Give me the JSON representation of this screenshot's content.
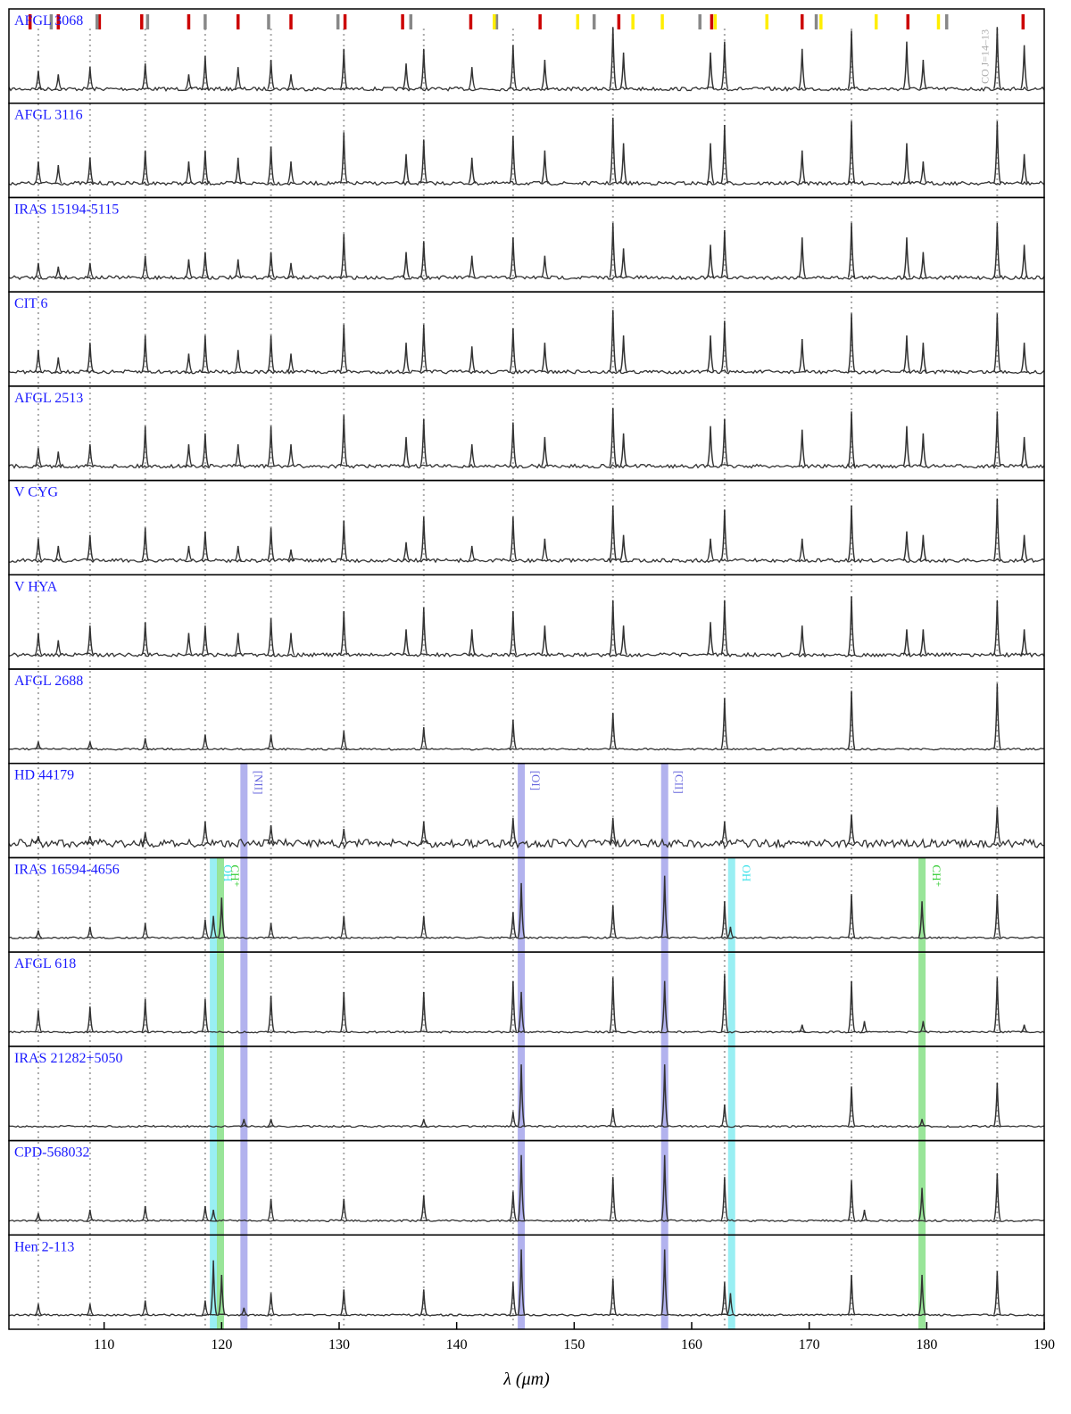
{
  "chart_data": {
    "type": "spectra",
    "xlabel": "λ (μm)",
    "xlim": [
      101.9,
      190
    ],
    "xticks": [
      110,
      120,
      130,
      140,
      150,
      160,
      170,
      180,
      190
    ],
    "ylim": [
      0,
      1
    ],
    "line_color": "#333333",
    "label_color": "#1a1aff",
    "co_lines": {
      "label": "CO J=14–13",
      "color": "#aaaaaa",
      "x": [
        104.4,
        108.8,
        113.5,
        118.6,
        124.2,
        130.4,
        137.2,
        144.8,
        153.3,
        162.8,
        173.6,
        186.0
      ]
    },
    "markers": [
      {
        "color": "#cc0000",
        "x": [
          103.7,
          106.1,
          109.6,
          113.2,
          117.2,
          121.4,
          125.9,
          130.5,
          135.4,
          141.2,
          147.1,
          153.8,
          161.7,
          169.4,
          178.4,
          188.2
        ]
      },
      {
        "color": "#888888",
        "x": [
          105.5,
          109.4,
          113.7,
          118.6,
          124.0,
          129.9,
          136.1,
          143.4,
          151.7,
          160.7,
          170.6,
          181.7
        ]
      },
      {
        "color": "#ffee00",
        "x": [
          143.2,
          150.3,
          155.0,
          157.5,
          162.0,
          166.4,
          171.0,
          175.7,
          181.0
        ]
      }
    ],
    "panels": [
      {
        "name": "AFGL 3068",
        "x": [
          104.4,
          106.1,
          108.8,
          113.5,
          117.2,
          118.6,
          121.4,
          124.2,
          125.9,
          130.4,
          135.7,
          137.2,
          141.3,
          144.8,
          147.5,
          153.3,
          154.2,
          161.6,
          162.8,
          169.4,
          173.6,
          178.3,
          179.7,
          186.0,
          188.3
        ],
        "values": [
          0.25,
          0.2,
          0.3,
          0.35,
          0.2,
          0.45,
          0.3,
          0.4,
          0.2,
          0.55,
          0.35,
          0.55,
          0.3,
          0.6,
          0.4,
          0.85,
          0.5,
          0.5,
          0.65,
          0.55,
          0.8,
          0.65,
          0.4,
          0.85,
          0.6
        ]
      },
      {
        "name": "AFGL 3116",
        "x": [
          104.4,
          106.1,
          108.8,
          113.5,
          117.2,
          118.6,
          121.4,
          124.2,
          125.9,
          130.4,
          135.7,
          137.2,
          141.3,
          144.8,
          147.5,
          153.3,
          154.2,
          161.6,
          162.8,
          169.4,
          173.6,
          178.3,
          179.7,
          186.0,
          188.3
        ],
        "values": [
          0.3,
          0.25,
          0.35,
          0.45,
          0.3,
          0.45,
          0.35,
          0.5,
          0.3,
          0.7,
          0.4,
          0.6,
          0.35,
          0.65,
          0.45,
          0.9,
          0.55,
          0.55,
          0.8,
          0.45,
          0.85,
          0.55,
          0.3,
          0.85,
          0.4
        ]
      },
      {
        "name": "IRAS 15194-5115",
        "x": [
          104.4,
          106.1,
          108.8,
          113.5,
          117.2,
          118.6,
          121.4,
          124.2,
          125.9,
          130.4,
          135.7,
          137.2,
          141.3,
          144.8,
          147.5,
          153.3,
          154.2,
          161.6,
          162.8,
          169.4,
          173.6,
          178.3,
          179.7,
          186.0,
          188.3
        ],
        "values": [
          0.2,
          0.15,
          0.2,
          0.3,
          0.25,
          0.35,
          0.25,
          0.35,
          0.2,
          0.6,
          0.35,
          0.5,
          0.3,
          0.55,
          0.3,
          0.75,
          0.4,
          0.45,
          0.65,
          0.55,
          0.75,
          0.55,
          0.35,
          0.75,
          0.45
        ]
      },
      {
        "name": "CIT 6",
        "x": [
          104.4,
          106.1,
          108.8,
          113.5,
          117.2,
          118.6,
          121.4,
          124.2,
          125.9,
          130.4,
          135.7,
          137.2,
          141.3,
          144.8,
          147.5,
          153.3,
          154.2,
          161.6,
          162.8,
          169.4,
          173.6,
          178.3,
          179.7,
          186.0,
          188.3
        ],
        "values": [
          0.3,
          0.2,
          0.4,
          0.5,
          0.25,
          0.5,
          0.3,
          0.5,
          0.25,
          0.65,
          0.4,
          0.65,
          0.35,
          0.6,
          0.4,
          0.85,
          0.5,
          0.5,
          0.7,
          0.45,
          0.8,
          0.5,
          0.4,
          0.8,
          0.4
        ]
      },
      {
        "name": "AFGL 2513",
        "x": [
          104.4,
          106.1,
          108.8,
          113.5,
          117.2,
          118.6,
          121.4,
          124.2,
          125.9,
          130.4,
          135.7,
          137.2,
          141.3,
          144.8,
          147.5,
          153.3,
          154.2,
          161.6,
          162.8,
          169.4,
          173.6,
          178.3,
          179.7,
          186.0,
          188.3
        ],
        "values": [
          0.25,
          0.2,
          0.3,
          0.55,
          0.3,
          0.45,
          0.3,
          0.55,
          0.3,
          0.7,
          0.4,
          0.65,
          0.3,
          0.6,
          0.4,
          0.8,
          0.45,
          0.55,
          0.65,
          0.5,
          0.75,
          0.55,
          0.45,
          0.75,
          0.4
        ]
      },
      {
        "name": "V CYG",
        "x": [
          104.4,
          106.1,
          108.8,
          113.5,
          117.2,
          118.6,
          121.4,
          124.2,
          125.9,
          130.4,
          135.7,
          137.2,
          141.3,
          144.8,
          147.5,
          153.3,
          154.2,
          161.6,
          162.8,
          169.4,
          173.6,
          178.3,
          179.7,
          186.0,
          188.3
        ],
        "values": [
          0.3,
          0.2,
          0.35,
          0.45,
          0.2,
          0.4,
          0.2,
          0.45,
          0.15,
          0.55,
          0.25,
          0.6,
          0.2,
          0.6,
          0.3,
          0.75,
          0.35,
          0.3,
          0.7,
          0.3,
          0.75,
          0.4,
          0.35,
          0.85,
          0.35
        ]
      },
      {
        "name": "V HYA",
        "x": [
          104.4,
          106.1,
          108.8,
          113.5,
          117.2,
          118.6,
          121.4,
          124.2,
          125.9,
          130.4,
          135.7,
          137.2,
          141.3,
          144.8,
          147.5,
          153.3,
          154.2,
          161.6,
          162.8,
          169.4,
          173.6,
          178.3,
          179.7,
          186.0,
          188.3
        ],
        "values": [
          0.3,
          0.2,
          0.4,
          0.45,
          0.3,
          0.4,
          0.3,
          0.5,
          0.3,
          0.6,
          0.35,
          0.65,
          0.35,
          0.6,
          0.4,
          0.75,
          0.4,
          0.45,
          0.75,
          0.4,
          0.8,
          0.35,
          0.35,
          0.75,
          0.35
        ]
      },
      {
        "name": "AFGL 2688",
        "x": [
          104.4,
          108.8,
          113.5,
          118.6,
          124.2,
          130.4,
          137.2,
          144.8,
          153.3,
          162.8,
          173.6,
          186.0
        ],
        "values": [
          0.1,
          0.1,
          0.15,
          0.2,
          0.2,
          0.25,
          0.3,
          0.4,
          0.5,
          0.7,
          0.8,
          0.9
        ]
      },
      {
        "name": "HD 44179",
        "x": [
          104.4,
          108.8,
          113.5,
          118.6,
          124.2,
          130.4,
          137.2,
          144.8,
          153.3,
          162.8,
          173.6,
          186.0
        ],
        "values": [
          0.1,
          0.1,
          0.15,
          0.3,
          0.25,
          0.2,
          0.3,
          0.35,
          0.35,
          0.3,
          0.4,
          0.5
        ],
        "bands": [
          {
            "label": "[NII]",
            "x": 121.9,
            "color": "#6666dd"
          },
          {
            "label": "[OI]",
            "x": 145.5,
            "color": "#6666dd"
          },
          {
            "label": "[CII]",
            "x": 157.7,
            "color": "#6666dd"
          }
        ]
      },
      {
        "name": "IRAS 16594-4656",
        "x": [
          104.4,
          108.8,
          113.5,
          118.6,
          119.3,
          120.0,
          124.2,
          130.4,
          137.2,
          144.8,
          145.5,
          153.3,
          157.7,
          162.8,
          163.3,
          173.6,
          179.6,
          186.0
        ],
        "values": [
          0.1,
          0.15,
          0.2,
          0.25,
          0.3,
          0.55,
          0.2,
          0.3,
          0.3,
          0.35,
          0.75,
          0.45,
          0.85,
          0.5,
          0.15,
          0.6,
          0.5,
          0.6
        ],
        "bands": [
          {
            "label": "OH",
            "x": 119.3,
            "color": "#33e0e8"
          },
          {
            "label": "CH⁺",
            "x": 119.9,
            "color": "#33cc33"
          },
          {
            "label": "OH",
            "x": 163.4,
            "color": "#33e0e8"
          },
          {
            "label": "CH⁺",
            "x": 179.6,
            "color": "#33cc33"
          }
        ]
      },
      {
        "name": "AFGL 618",
        "x": [
          104.4,
          108.8,
          113.5,
          118.6,
          124.2,
          130.4,
          137.2,
          144.8,
          145.5,
          153.3,
          157.7,
          162.8,
          169.4,
          173.6,
          174.7,
          179.7,
          186.0,
          188.3
        ],
        "values": [
          0.3,
          0.35,
          0.45,
          0.45,
          0.5,
          0.55,
          0.55,
          0.7,
          0.55,
          0.75,
          0.7,
          0.8,
          0.1,
          0.7,
          0.15,
          0.15,
          0.75,
          0.1
        ]
      },
      {
        "name": "IRAS 21282+5050",
        "x": [
          121.9,
          124.2,
          137.2,
          144.8,
          145.5,
          153.3,
          157.7,
          162.8,
          173.6,
          179.6,
          186.0
        ],
        "values": [
          0.1,
          0.1,
          0.1,
          0.2,
          0.85,
          0.25,
          0.85,
          0.3,
          0.55,
          0.1,
          0.6
        ]
      },
      {
        "name": "CPD-568032",
        "x": [
          104.4,
          108.8,
          113.5,
          118.6,
          119.3,
          124.2,
          130.4,
          137.2,
          144.8,
          145.5,
          153.3,
          157.7,
          162.8,
          173.6,
          174.7,
          179.6,
          186.0
        ],
        "values": [
          0.1,
          0.15,
          0.2,
          0.2,
          0.15,
          0.3,
          0.3,
          0.35,
          0.4,
          0.9,
          0.6,
          0.9,
          0.6,
          0.55,
          0.15,
          0.45,
          0.65
        ]
      },
      {
        "name": "Hen 2-113",
        "x": [
          104.4,
          108.8,
          113.5,
          118.6,
          119.3,
          120.0,
          121.9,
          124.2,
          130.4,
          137.2,
          144.8,
          145.5,
          153.3,
          157.7,
          162.8,
          163.3,
          173.6,
          179.6,
          186.0
        ],
        "values": [
          0.15,
          0.15,
          0.2,
          0.2,
          0.75,
          0.55,
          0.1,
          0.3,
          0.35,
          0.35,
          0.45,
          0.9,
          0.5,
          0.9,
          0.45,
          0.3,
          0.55,
          0.55,
          0.6
        ]
      }
    ]
  }
}
